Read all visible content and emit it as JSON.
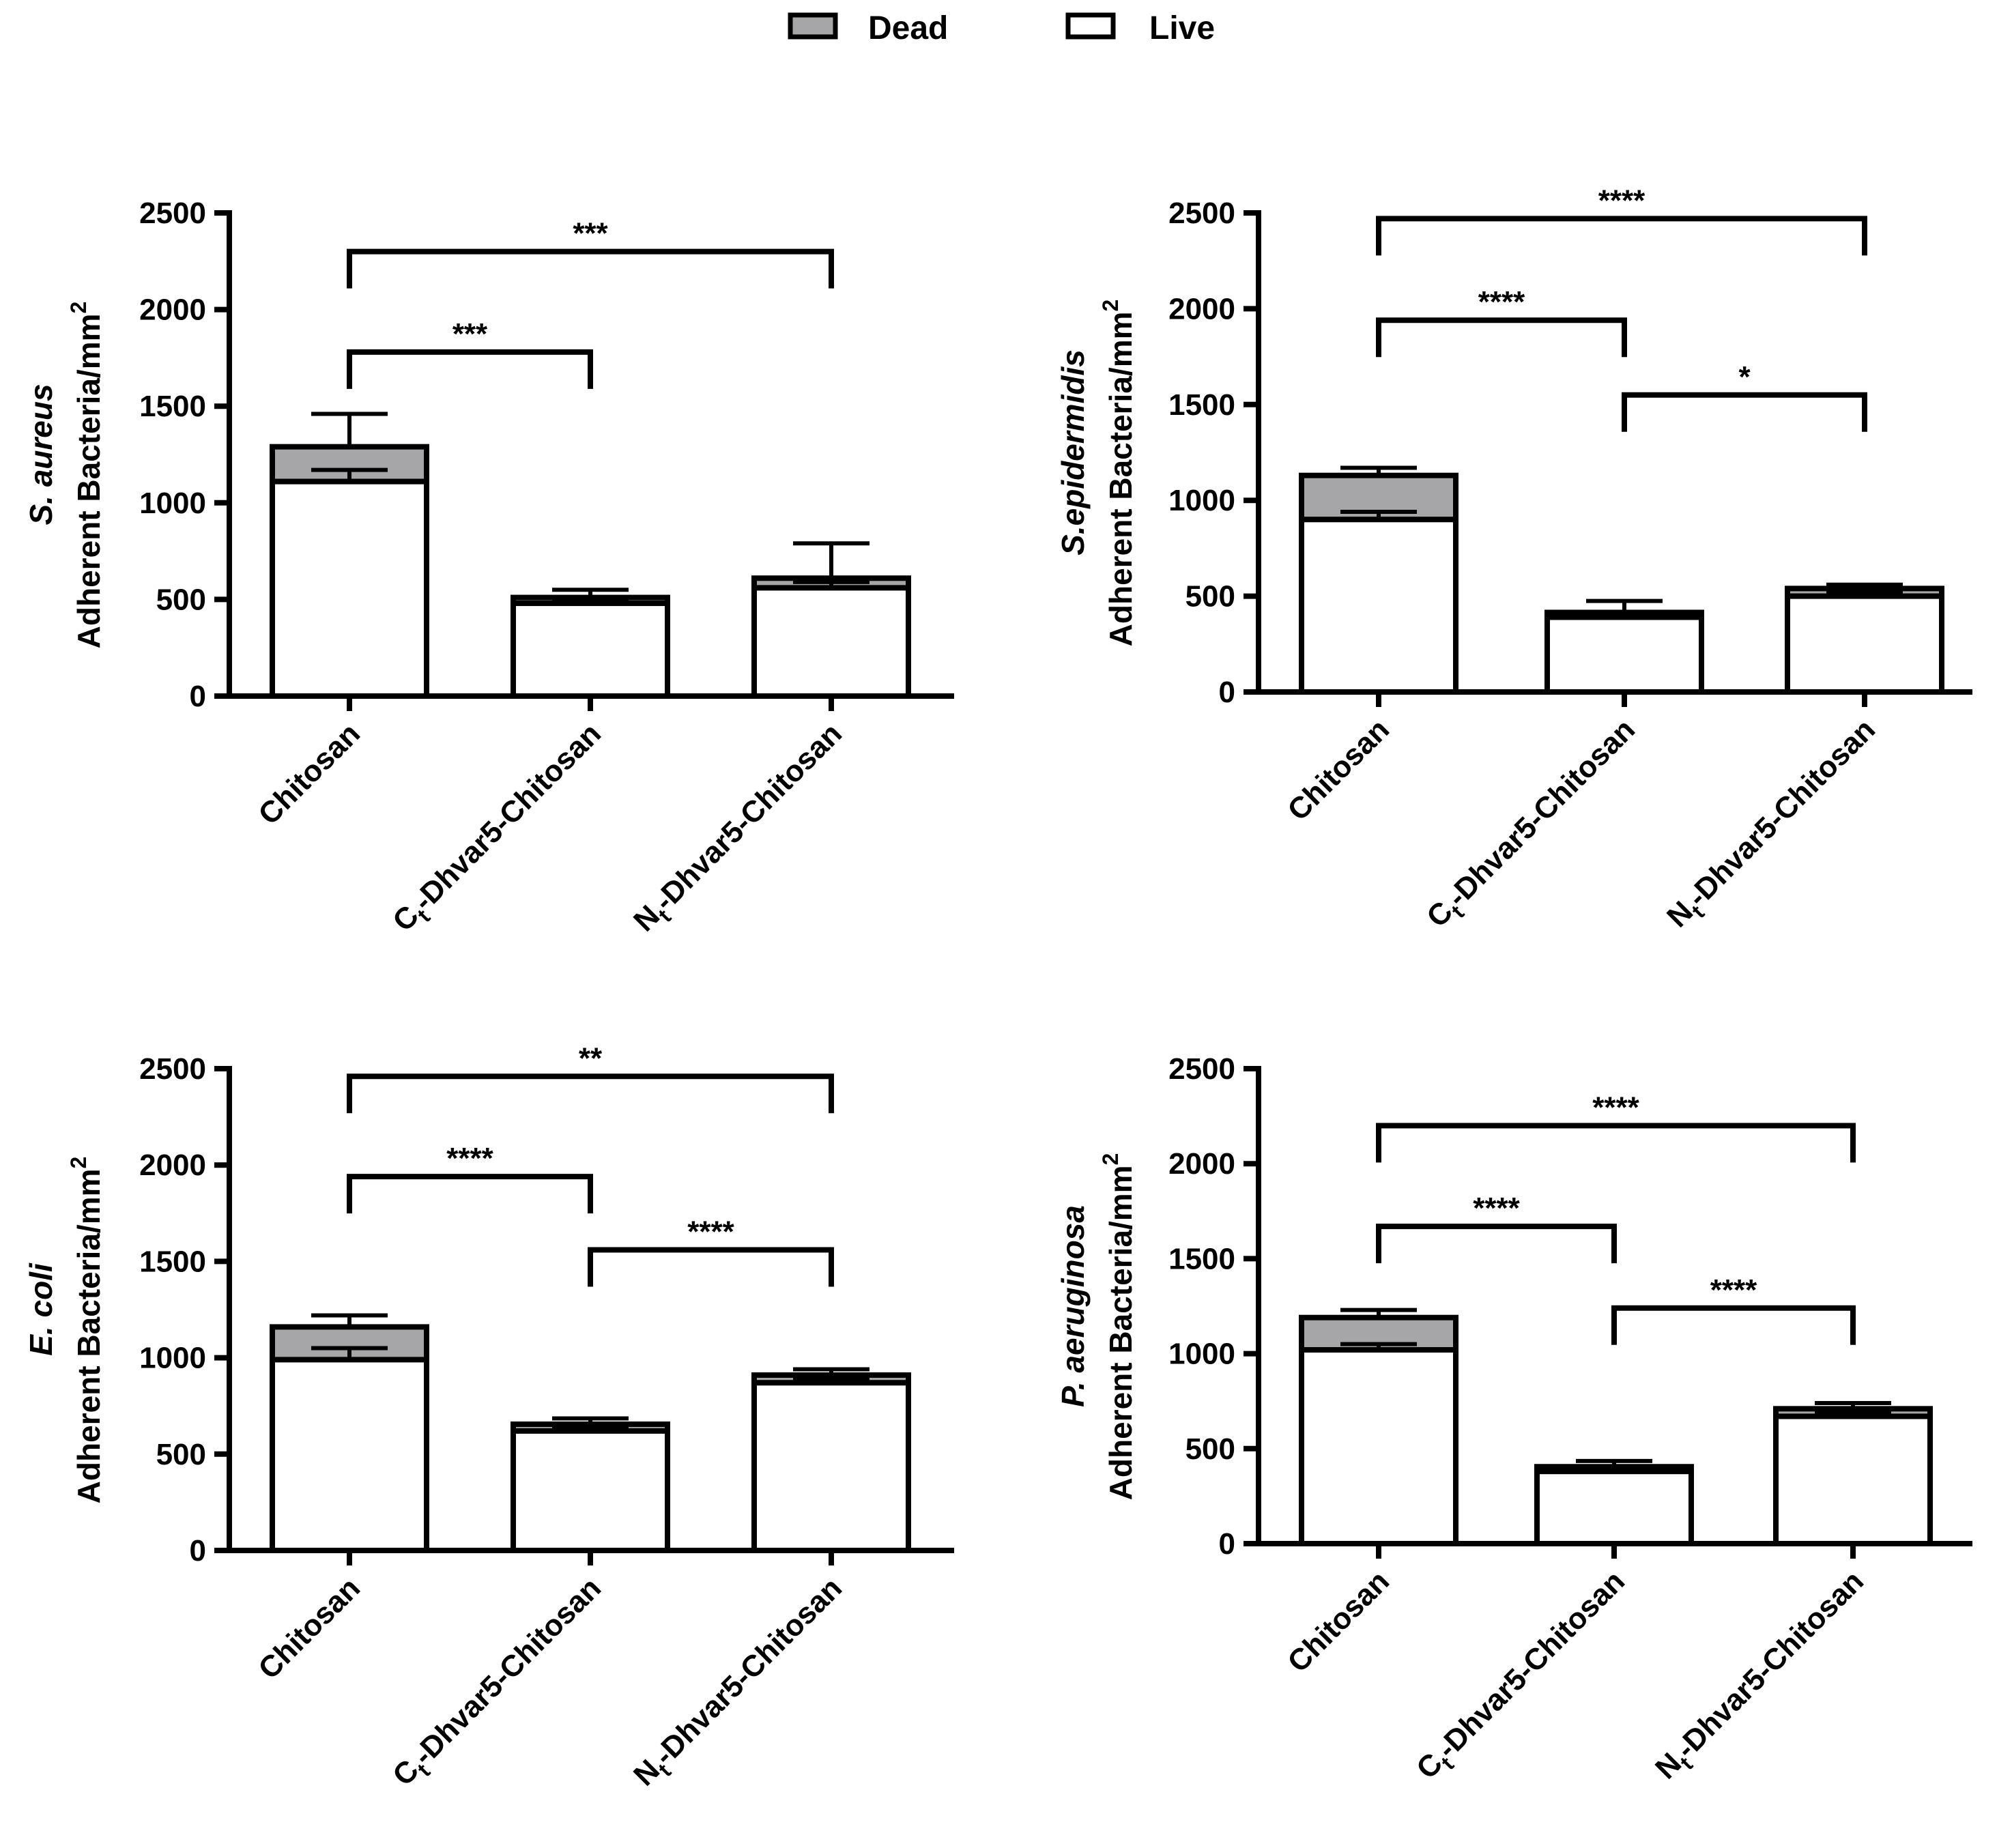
{
  "legend": {
    "dead": {
      "label": "Dead",
      "color": "#a6a6a8"
    },
    "live": {
      "label": "Live",
      "color": "#ffffff"
    }
  },
  "chart_data": [
    {
      "type": "bar",
      "stacked": true,
      "organism": "S. aureus",
      "ylabel": "Adherent Bacteria/mm",
      "ylabel_superscript": "2",
      "ylim": [
        0,
        2500
      ],
      "yticks": [
        0,
        500,
        1000,
        1500,
        2000,
        2500
      ],
      "categories": [
        {
          "main": "Chitosan",
          "prefix": "",
          "sub": "",
          "rest": ""
        },
        {
          "main": "",
          "prefix": "C",
          "sub": "t",
          "rest": "-Dhvar5-Chitosan"
        },
        {
          "main": "",
          "prefix": "N",
          "sub": "t",
          "rest": "-Dhvar5-Chitosan"
        }
      ],
      "series": [
        {
          "name": "Live",
          "values": [
            1110,
            480,
            560
          ],
          "error": [
            60,
            25,
            30
          ]
        },
        {
          "name": "Dead",
          "values": [
            180,
            30,
            50
          ],
          "error": [
            170,
            40,
            180
          ]
        }
      ],
      "significance": [
        {
          "from": 0,
          "to": 2,
          "value": 2300,
          "label": "***"
        },
        {
          "from": 0,
          "to": 1,
          "value": 1780,
          "label": "***"
        }
      ]
    },
    {
      "type": "bar",
      "stacked": true,
      "organism": "S.epidermidis",
      "ylabel": "Adherent Bacteria/mm",
      "ylabel_superscript": "2",
      "ylim": [
        0,
        2500
      ],
      "yticks": [
        0,
        500,
        1000,
        1500,
        2000,
        2500
      ],
      "categories": [
        {
          "main": "Chitosan",
          "prefix": "",
          "sub": "",
          "rest": ""
        },
        {
          "main": "",
          "prefix": "C",
          "sub": "t",
          "rest": "-Dhvar5-Chitosan"
        },
        {
          "main": "",
          "prefix": "N",
          "sub": "t",
          "rest": "-Dhvar5-Chitosan"
        }
      ],
      "series": [
        {
          "name": "Live",
          "values": [
            900,
            390,
            500
          ],
          "error": [
            40,
            20,
            20
          ]
        },
        {
          "name": "Dead",
          "values": [
            230,
            25,
            40
          ],
          "error": [
            40,
            60,
            20
          ]
        }
      ],
      "significance": [
        {
          "from": 0,
          "to": 2,
          "value": 2470,
          "label": "****"
        },
        {
          "from": 0,
          "to": 1,
          "value": 1940,
          "label": "****"
        },
        {
          "from": 1,
          "to": 2,
          "value": 1550,
          "label": "*"
        }
      ]
    },
    {
      "type": "bar",
      "stacked": true,
      "organism": "E. coli",
      "ylabel": "Adherent Bacteria/mm",
      "ylabel_superscript": "2",
      "ylim": [
        0,
        2500
      ],
      "yticks": [
        0,
        500,
        1000,
        1500,
        2000,
        2500
      ],
      "categories": [
        {
          "main": "Chitosan",
          "prefix": "",
          "sub": "",
          "rest": ""
        },
        {
          "main": "",
          "prefix": "C",
          "sub": "t",
          "rest": "-Dhvar5-Chitosan"
        },
        {
          "main": "",
          "prefix": "N",
          "sub": "t",
          "rest": "-Dhvar5-Chitosan"
        }
      ],
      "series": [
        {
          "name": "Live",
          "values": [
            990,
            620,
            870
          ],
          "error": [
            60,
            20,
            20
          ]
        },
        {
          "name": "Dead",
          "values": [
            170,
            35,
            40
          ],
          "error": [
            60,
            30,
            30
          ]
        }
      ],
      "significance": [
        {
          "from": 0,
          "to": 2,
          "value": 2460,
          "label": "**"
        },
        {
          "from": 0,
          "to": 1,
          "value": 1940,
          "label": "****"
        },
        {
          "from": 1,
          "to": 2,
          "value": 1560,
          "label": "****"
        }
      ]
    },
    {
      "type": "bar",
      "stacked": true,
      "organism": "P. aeruginosa",
      "ylabel": "Adherent Bacteria/mm",
      "ylabel_superscript": "2",
      "ylim": [
        0,
        2500
      ],
      "yticks": [
        0,
        500,
        1000,
        1500,
        2000,
        2500
      ],
      "categories": [
        {
          "main": "Chitosan",
          "prefix": "",
          "sub": "",
          "rest": ""
        },
        {
          "main": "",
          "prefix": "C",
          "sub": "t",
          "rest": "-Dhvar5-Chitosan"
        },
        {
          "main": "",
          "prefix": "N",
          "sub": "t",
          "rest": "-Dhvar5-Chitosan"
        }
      ],
      "series": [
        {
          "name": "Live",
          "values": [
            1020,
            380,
            670
          ],
          "error": [
            30,
            15,
            20
          ]
        },
        {
          "name": "Dead",
          "values": [
            170,
            25,
            40
          ],
          "error": [
            40,
            30,
            30
          ]
        }
      ],
      "significance": [
        {
          "from": 0,
          "to": 2,
          "value": 2200,
          "label": "****"
        },
        {
          "from": 0,
          "to": 1,
          "value": 1670,
          "label": "****"
        },
        {
          "from": 1,
          "to": 2,
          "value": 1240,
          "label": "****"
        }
      ]
    }
  ]
}
